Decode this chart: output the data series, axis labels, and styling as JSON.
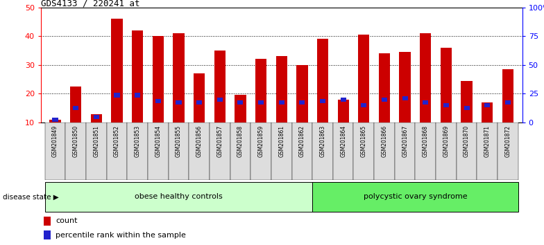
{
  "title": "GDS4133 / 220241_at",
  "samples": [
    "GSM201849",
    "GSM201850",
    "GSM201851",
    "GSM201852",
    "GSM201853",
    "GSM201854",
    "GSM201855",
    "GSM201856",
    "GSM201857",
    "GSM201858",
    "GSM201859",
    "GSM201861",
    "GSM201862",
    "GSM201863",
    "GSM201864",
    "GSM201865",
    "GSM201866",
    "GSM201867",
    "GSM201868",
    "GSM201869",
    "GSM201870",
    "GSM201871",
    "GSM201872"
  ],
  "counts": [
    11,
    22.5,
    13,
    46,
    42,
    40,
    41,
    27,
    35,
    19.5,
    32,
    33,
    30,
    39,
    18,
    40.5,
    34,
    34.5,
    41,
    36,
    24.5,
    17,
    28.5
  ],
  "percentile_positions": [
    11,
    15,
    12,
    19.5,
    19.5,
    17.5,
    17,
    17,
    18,
    17,
    17,
    17,
    17,
    17.5,
    18,
    16,
    18,
    18.5,
    17,
    16,
    15,
    16,
    17
  ],
  "bar_color": "#cc0000",
  "blue_color": "#2222cc",
  "group1_label": "obese healthy controls",
  "group2_label": "polycystic ovary syndrome",
  "group1_count": 13,
  "group2_count": 10,
  "group1_color": "#ccffcc",
  "group2_color": "#66ee66",
  "ylim_left": [
    10,
    50
  ],
  "ylim_right": [
    0,
    100
  ],
  "right_ticks": [
    0,
    25,
    50,
    75,
    100
  ],
  "right_tick_labels": [
    "0",
    "25",
    "50",
    "75",
    "100%"
  ],
  "left_ticks": [
    10,
    20,
    30,
    40,
    50
  ],
  "legend_count_label": "count",
  "legend_pct_label": "percentile rank within the sample",
  "xlabel_disease": "disease state",
  "bar_width": 0.55,
  "background_color": "#ffffff",
  "tick_bg_color": "#dddddd"
}
